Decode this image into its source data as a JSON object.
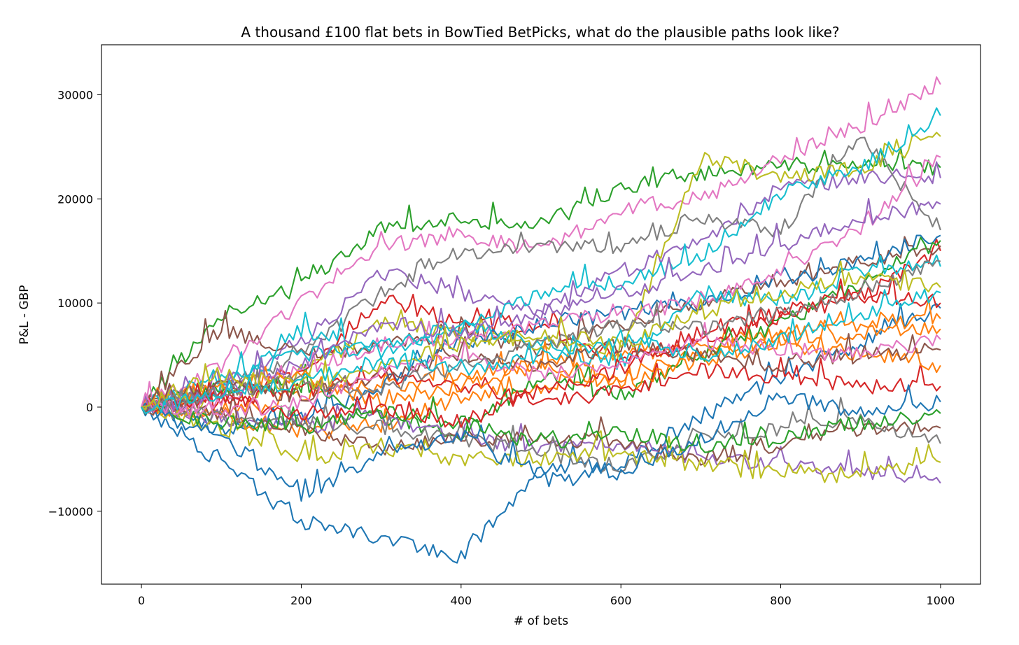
{
  "chart_data": {
    "type": "line",
    "title": "A thousand £100 flat bets in BowTied BetPicks, what do the plausible paths look like?",
    "xlabel": "# of bets",
    "ylabel": "P&L - GBP",
    "xlim": [
      -50,
      1050
    ],
    "ylim": [
      -17000,
      34800
    ],
    "grid": false,
    "legend": "none",
    "x_ticks": [
      {
        "value": 0,
        "label": "0"
      },
      {
        "value": 200,
        "label": "200"
      },
      {
        "value": 400,
        "label": "400"
      },
      {
        "value": 600,
        "label": "600"
      },
      {
        "value": 800,
        "label": "800"
      },
      {
        "value": 1000,
        "label": "1000"
      }
    ],
    "y_ticks": [
      {
        "value": -10000,
        "label": "−10000"
      },
      {
        "value": 0,
        "label": "0"
      },
      {
        "value": 10000,
        "label": "10000"
      },
      {
        "value": 20000,
        "label": "20000"
      },
      {
        "value": 30000,
        "label": "30000"
      }
    ],
    "palette": [
      "#1f77b4",
      "#ff7f0e",
      "#2ca02c",
      "#d62728",
      "#9467bd",
      "#8c564b",
      "#e377c2",
      "#7f7f7f",
      "#bcbd22",
      "#17becf"
    ],
    "x": [
      0,
      100,
      200,
      300,
      400,
      500,
      600,
      700,
      800,
      900,
      1000
    ],
    "series": [
      {
        "color": "#1f77b4",
        "values": [
          0,
          -5500,
          -11000,
          -12500,
          -14500,
          -6000,
          -5500,
          -1000,
          3000,
          6000,
          9500
        ]
      },
      {
        "color": "#ff7f0e",
        "values": [
          0,
          -500,
          1000,
          2000,
          3000,
          4000,
          5000,
          6000,
          7000,
          8000,
          8500
        ]
      },
      {
        "color": "#2ca02c",
        "values": [
          0,
          9000,
          11500,
          17000,
          18000,
          17500,
          21000,
          22500,
          23000,
          23000,
          23000
        ]
      },
      {
        "color": "#d62728",
        "values": [
          0,
          1000,
          3000,
          10500,
          8000,
          7500,
          5000,
          6500,
          8500,
          10500,
          15000
        ]
      },
      {
        "color": "#9467bd",
        "values": [
          0,
          2000,
          6000,
          13000,
          11000,
          9000,
          13000,
          16000,
          21000,
          22000,
          22000
        ]
      },
      {
        "color": "#8c564b",
        "values": [
          0,
          7500,
          5000,
          6000,
          7000,
          5500,
          8000,
          10000,
          12000,
          14000,
          15500
        ]
      },
      {
        "color": "#e377c2",
        "values": [
          0,
          4000,
          10000,
          15500,
          16500,
          15000,
          19000,
          20000,
          24000,
          27000,
          31000
        ]
      },
      {
        "color": "#7f7f7f",
        "values": [
          0,
          2000,
          5000,
          11000,
          14500,
          15500,
          15500,
          18000,
          17000,
          26000,
          17000
        ]
      },
      {
        "color": "#bcbd22",
        "values": [
          0,
          500,
          3000,
          8000,
          7000,
          6000,
          5000,
          24000,
          22000,
          23000,
          26000
        ]
      },
      {
        "color": "#17becf",
        "values": [
          0,
          1500,
          7500,
          5000,
          7500,
          11000,
          12000,
          14500,
          20500,
          23000,
          28000
        ]
      },
      {
        "color": "#1f77b4",
        "values": [
          0,
          -2000,
          -1000,
          2000,
          6000,
          8000,
          9000,
          10000,
          12000,
          14000,
          16500
        ]
      },
      {
        "color": "#ff7f0e",
        "values": [
          0,
          -1000,
          -2500,
          -2000,
          1000,
          2000,
          3000,
          5000,
          6500,
          7000,
          7500
        ]
      },
      {
        "color": "#2ca02c",
        "values": [
          0,
          1500,
          2000,
          -1000,
          -2500,
          3000,
          1000,
          5000,
          8000,
          12000,
          16000
        ]
      },
      {
        "color": "#d62728",
        "values": [
          0,
          500,
          1500,
          3000,
          2000,
          500,
          1500,
          3500,
          3000,
          2000,
          2000
        ]
      },
      {
        "color": "#9467bd",
        "values": [
          0,
          -1000,
          -2000,
          -1000,
          -3000,
          -4000,
          -3500,
          -5000,
          -5500,
          -6000,
          -7300
        ]
      },
      {
        "color": "#8c564b",
        "values": [
          0,
          -500,
          -2000,
          -4000,
          -3000,
          -3000,
          -3500,
          -5000,
          -4000,
          -2000,
          -2000
        ]
      },
      {
        "color": "#e377c2",
        "values": [
          0,
          500,
          3500,
          6000,
          6500,
          8000,
          9000,
          10000,
          13000,
          17000,
          24000
        ]
      },
      {
        "color": "#7f7f7f",
        "values": [
          0,
          -1000,
          -1500,
          -2000,
          -3000,
          -4500,
          -6000,
          -3000,
          -2000,
          -1000,
          -3500
        ]
      },
      {
        "color": "#bcbd22",
        "values": [
          0,
          -2000,
          -5000,
          -4000,
          -5000,
          -5000,
          -4500,
          -5500,
          -6500,
          -6500,
          -5300
        ]
      },
      {
        "color": "#17becf",
        "values": [
          0,
          3000,
          5000,
          6000,
          8000,
          6000,
          4000,
          11000,
          10000,
          13000,
          13500
        ]
      },
      {
        "color": "#1f77b4",
        "values": [
          0,
          -3000,
          -8500,
          -4500,
          -2500,
          -7000,
          -6500,
          -3000,
          1000,
          -500,
          500
        ]
      },
      {
        "color": "#ff7f0e",
        "values": [
          0,
          2000,
          3000,
          500,
          2000,
          4000,
          2000,
          4500,
          6000,
          5000,
          4000
        ]
      },
      {
        "color": "#2ca02c",
        "values": [
          0,
          -1500,
          -2000,
          -500,
          -1500,
          -3500,
          -2500,
          -4000,
          -3000,
          -1500,
          -600
        ]
      },
      {
        "color": "#d62728",
        "values": [
          0,
          1000,
          -1000,
          0,
          -1500,
          1500,
          3500,
          7000,
          9000,
          11000,
          10000
        ]
      },
      {
        "color": "#9467bd",
        "values": [
          0,
          1000,
          4000,
          8000,
          7000,
          9000,
          11000,
          13000,
          15500,
          18000,
          19500
        ]
      },
      {
        "color": "#8c564b",
        "values": [
          0,
          2000,
          1000,
          3000,
          5000,
          4000,
          6000,
          5000,
          4000,
          5000,
          5500
        ]
      },
      {
        "color": "#e377c2",
        "values": [
          0,
          -500,
          500,
          3500,
          5000,
          3000,
          4000,
          6500,
          5000,
          5000,
          6500
        ]
      },
      {
        "color": "#7f7f7f",
        "values": [
          0,
          1500,
          2500,
          1500,
          4000,
          6000,
          8000,
          7500,
          9000,
          11000,
          14000
        ]
      },
      {
        "color": "#bcbd22",
        "values": [
          0,
          3000,
          2000,
          4000,
          6000,
          7000,
          6000,
          9000,
          11000,
          12500,
          11500
        ]
      },
      {
        "color": "#17becf",
        "values": [
          0,
          1000,
          2500,
          4500,
          3500,
          5000,
          6500,
          5000,
          6500,
          9000,
          11000
        ]
      }
    ]
  }
}
